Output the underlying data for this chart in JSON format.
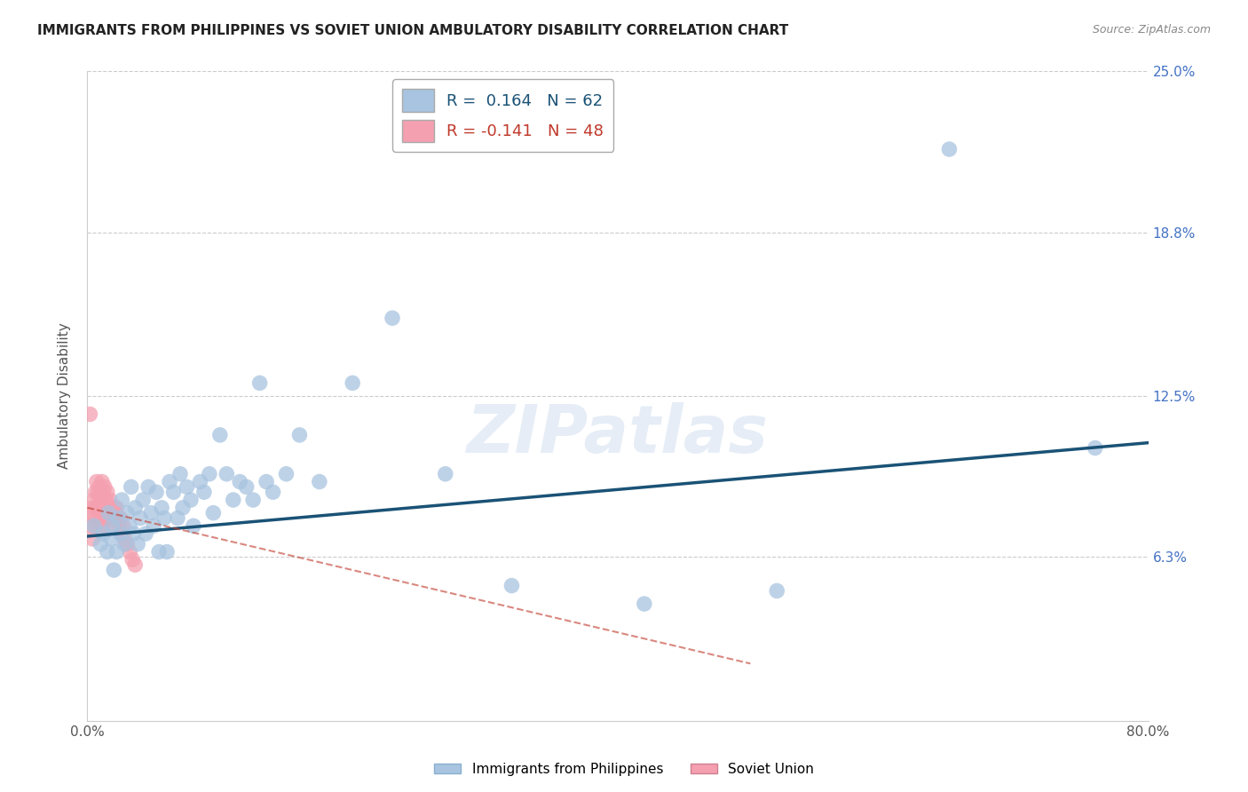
{
  "title": "IMMIGRANTS FROM PHILIPPINES VS SOVIET UNION AMBULATORY DISABILITY CORRELATION CHART",
  "source": "Source: ZipAtlas.com",
  "ylabel": "Ambulatory Disability",
  "xlim": [
    0.0,
    0.8
  ],
  "ylim": [
    0.0,
    0.25
  ],
  "ytick_positions": [
    0.0,
    0.063,
    0.125,
    0.188,
    0.25
  ],
  "ytick_labels": [
    "",
    "6.3%",
    "12.5%",
    "18.8%",
    "25.0%"
  ],
  "xtick_positions": [
    0.0,
    0.1,
    0.2,
    0.3,
    0.4,
    0.5,
    0.6,
    0.7,
    0.8
  ],
  "xtick_labels": [
    "0.0%",
    "",
    "",
    "",
    "",
    "",
    "",
    "",
    "80.0%"
  ],
  "philippines_R": 0.164,
  "philippines_N": 62,
  "soviet_R": -0.141,
  "soviet_N": 48,
  "philippines_color": "#a8c4e0",
  "philippines_line_color": "#1a5276",
  "soviet_color": "#f4a0b0",
  "soviet_line_color": "#c0392b",
  "watermark": "ZIPatlas",
  "philippines_scatter_x": [
    0.005,
    0.01,
    0.012,
    0.015,
    0.016,
    0.018,
    0.019,
    0.02,
    0.022,
    0.023,
    0.025,
    0.026,
    0.028,
    0.03,
    0.032,
    0.033,
    0.035,
    0.036,
    0.038,
    0.04,
    0.042,
    0.044,
    0.046,
    0.048,
    0.05,
    0.052,
    0.054,
    0.056,
    0.058,
    0.06,
    0.062,
    0.065,
    0.068,
    0.07,
    0.072,
    0.075,
    0.078,
    0.08,
    0.085,
    0.088,
    0.092,
    0.095,
    0.1,
    0.105,
    0.11,
    0.115,
    0.12,
    0.125,
    0.13,
    0.135,
    0.14,
    0.15,
    0.16,
    0.175,
    0.2,
    0.23,
    0.27,
    0.32,
    0.42,
    0.52,
    0.65,
    0.76
  ],
  "philippines_scatter_y": [
    0.075,
    0.068,
    0.072,
    0.065,
    0.08,
    0.07,
    0.075,
    0.058,
    0.065,
    0.078,
    0.072,
    0.085,
    0.068,
    0.08,
    0.075,
    0.09,
    0.072,
    0.082,
    0.068,
    0.078,
    0.085,
    0.072,
    0.09,
    0.08,
    0.075,
    0.088,
    0.065,
    0.082,
    0.078,
    0.065,
    0.092,
    0.088,
    0.078,
    0.095,
    0.082,
    0.09,
    0.085,
    0.075,
    0.092,
    0.088,
    0.095,
    0.08,
    0.11,
    0.095,
    0.085,
    0.092,
    0.09,
    0.085,
    0.13,
    0.092,
    0.088,
    0.095,
    0.11,
    0.092,
    0.13,
    0.155,
    0.095,
    0.052,
    0.045,
    0.05,
    0.22,
    0.105
  ],
  "soviet_scatter_x": [
    0.002,
    0.003,
    0.004,
    0.004,
    0.005,
    0.005,
    0.006,
    0.006,
    0.007,
    0.007,
    0.008,
    0.008,
    0.009,
    0.009,
    0.01,
    0.01,
    0.011,
    0.011,
    0.012,
    0.012,
    0.013,
    0.013,
    0.014,
    0.014,
    0.015,
    0.015,
    0.016,
    0.016,
    0.017,
    0.017,
    0.018,
    0.018,
    0.019,
    0.02,
    0.02,
    0.021,
    0.022,
    0.023,
    0.024,
    0.025,
    0.026,
    0.027,
    0.028,
    0.03,
    0.032,
    0.034,
    0.036,
    0.002
  ],
  "soviet_scatter_y": [
    0.08,
    0.075,
    0.082,
    0.07,
    0.085,
    0.075,
    0.088,
    0.078,
    0.092,
    0.082,
    0.088,
    0.075,
    0.09,
    0.082,
    0.085,
    0.078,
    0.092,
    0.08,
    0.088,
    0.075,
    0.09,
    0.082,
    0.085,
    0.078,
    0.088,
    0.075,
    0.082,
    0.078,
    0.085,
    0.08,
    0.082,
    0.078,
    0.08,
    0.082,
    0.078,
    0.08,
    0.082,
    0.078,
    0.075,
    0.078,
    0.072,
    0.075,
    0.07,
    0.068,
    0.065,
    0.062,
    0.06,
    0.118
  ],
  "soviet_trend_x": [
    0.0,
    0.5
  ],
  "soviet_trend_y_start": 0.082,
  "soviet_trend_slope": -0.12,
  "phil_trend_x": [
    0.0,
    0.8
  ],
  "phil_trend_y_start": 0.071,
  "phil_trend_y_end": 0.107
}
